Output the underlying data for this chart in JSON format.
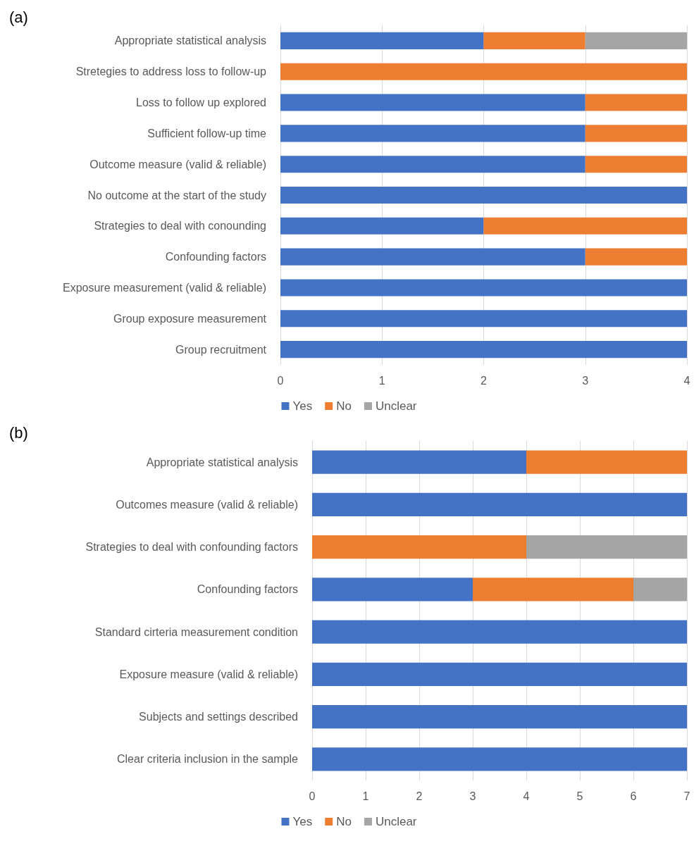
{
  "chart_data": [
    {
      "type": "bar",
      "title": "(a)",
      "orientation": "horizontal",
      "stacked": true,
      "categories": [
        "Appropriate statistical analysis",
        "Stretegies to address loss to follow-up",
        "Loss to follow up explored",
        "Sufficient follow-up time",
        "Outcome measure (valid & reliable)",
        "No outcome at the start of the study",
        "Strategies to deal with conounding",
        "Confounding factors",
        "Exposure measurement (valid & reliable)",
        "Group exposure measurement",
        "Group recruitment"
      ],
      "series": [
        {
          "name": "Yes",
          "color": "#4472c4",
          "values": [
            2,
            0,
            3,
            3,
            3,
            4,
            2,
            3,
            4,
            4,
            4
          ]
        },
        {
          "name": "No",
          "color": "#ed7d31",
          "values": [
            1,
            4,
            1,
            1,
            1,
            0,
            2,
            1,
            0,
            0,
            0
          ]
        },
        {
          "name": "Unclear",
          "color": "#a5a5a5",
          "values": [
            1,
            0,
            0,
            0,
            0,
            0,
            0,
            0,
            0,
            0,
            0
          ]
        }
      ],
      "xlim": [
        0,
        4
      ],
      "xticks": [
        0,
        1,
        2,
        3,
        4
      ],
      "grid": "x",
      "legend": "bottom"
    },
    {
      "type": "bar",
      "title": "(b)",
      "orientation": "horizontal",
      "stacked": true,
      "categories": [
        "Appropriate statistical analysis",
        "Outcomes measure (valid & reliable)",
        "Strategies to deal with confounding factors",
        "Confounding factors",
        "Standard cirteria measurement condition",
        "Exposure measure (valid & reliable)",
        "Subjects and settings described",
        "Clear criteria inclusion in the sample"
      ],
      "series": [
        {
          "name": "Yes",
          "color": "#4472c4",
          "values": [
            4,
            7,
            0,
            3,
            7,
            7,
            7,
            7
          ]
        },
        {
          "name": "No",
          "color": "#ed7d31",
          "values": [
            3,
            0,
            4,
            3,
            0,
            0,
            0,
            0
          ]
        },
        {
          "name": "Unclear",
          "color": "#a5a5a5",
          "values": [
            0,
            0,
            3,
            1,
            0,
            0,
            0,
            0
          ]
        }
      ],
      "xlim": [
        0,
        7
      ],
      "xticks": [
        0,
        1,
        2,
        3,
        4,
        5,
        6,
        7
      ],
      "grid": "x",
      "legend": "bottom"
    }
  ]
}
